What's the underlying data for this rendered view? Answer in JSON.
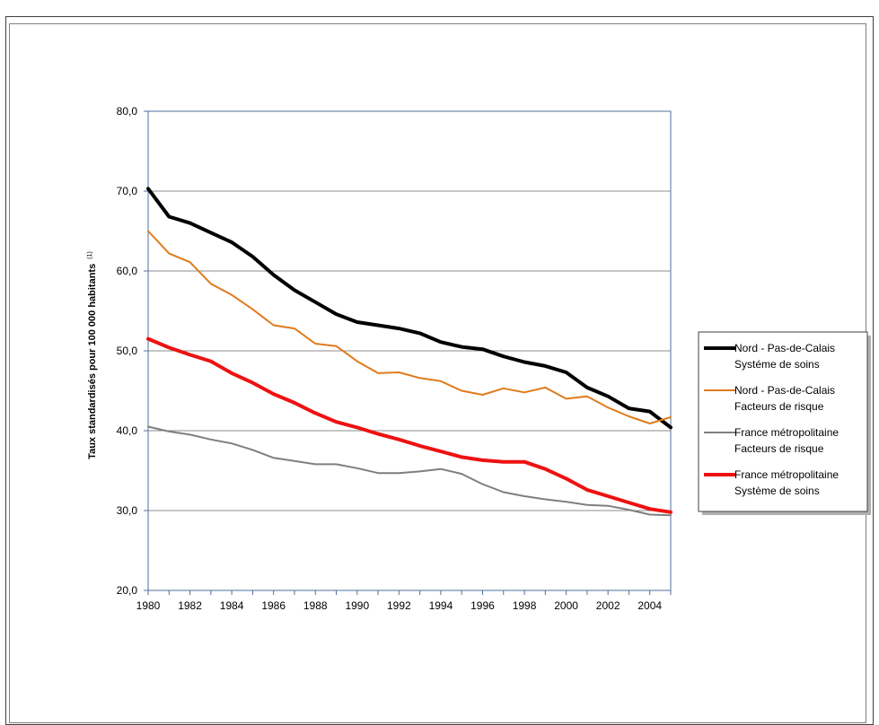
{
  "header": {
    "title": ""
  },
  "chart_data": {
    "type": "line",
    "title": "",
    "xlabel": "",
    "ylabel": "Taux standardisés pour 100 000 habitants",
    "ylabel_sup": "(1)",
    "xlim": [
      1980,
      2005
    ],
    "ylim": [
      20,
      80
    ],
    "yticks": [
      "20,0",
      "30,0",
      "40,0",
      "50,0",
      "60,0",
      "70,0",
      "80,0"
    ],
    "ytick_values": [
      20,
      30,
      40,
      50,
      60,
      70,
      80
    ],
    "xticks": [
      "1980",
      "1982",
      "1984",
      "1986",
      "1988",
      "1990",
      "1992",
      "1994",
      "1996",
      "1998",
      "2000",
      "2002",
      "2004"
    ],
    "xtick_values": [
      1980,
      1982,
      1984,
      1986,
      1988,
      1990,
      1992,
      1994,
      1996,
      1998,
      2000,
      2002,
      2004
    ],
    "grid": true,
    "legend_position": "right",
    "x": [
      1980,
      1981,
      1982,
      1983,
      1984,
      1985,
      1986,
      1987,
      1988,
      1989,
      1990,
      1991,
      1992,
      1993,
      1994,
      1995,
      1996,
      1997,
      1998,
      1999,
      2000,
      2001,
      2002,
      2003,
      2004,
      2005
    ],
    "series": [
      {
        "name_line1": "Nord - Pas-de-Calais",
        "name_line2": "Systéme de soins",
        "color": "#000000",
        "width": 4,
        "values": [
          70.3,
          66.8,
          66.0,
          64.8,
          63.6,
          61.8,
          59.5,
          57.6,
          56.1,
          54.6,
          53.6,
          53.2,
          52.8,
          52.2,
          51.1,
          50.5,
          50.2,
          49.3,
          48.6,
          48.1,
          47.3,
          45.4,
          44.3,
          42.8,
          42.4,
          40.4
        ]
      },
      {
        "name_line1": "Nord - Pas-de-Calais",
        "name_line2": "Facteurs  de risque",
        "color": "#e07b1c",
        "width": 2,
        "values": [
          65.0,
          62.2,
          61.1,
          58.4,
          57.0,
          55.2,
          53.2,
          52.8,
          50.9,
          50.6,
          48.7,
          47.2,
          47.3,
          46.6,
          46.2,
          45.0,
          44.5,
          45.3,
          44.8,
          45.4,
          44.0,
          44.3,
          42.9,
          41.8,
          40.9,
          41.7
        ]
      },
      {
        "name_line1": "France métropolitaine",
        "name_line2": "Facteurs de risque",
        "color": "#7f7f7f",
        "width": 2,
        "values": [
          40.5,
          39.9,
          39.5,
          38.9,
          38.4,
          37.6,
          36.6,
          36.2,
          35.8,
          35.8,
          35.3,
          34.7,
          34.7,
          34.9,
          35.2,
          34.6,
          33.3,
          32.3,
          31.8,
          31.4,
          31.1,
          30.7,
          30.6,
          30.1,
          29.5,
          29.4
        ]
      },
      {
        "name_line1": "France métropolitaine",
        "name_line2": "Système de soins",
        "color": "#ee1111",
        "width": 4,
        "values": [
          51.5,
          50.4,
          49.5,
          48.7,
          47.2,
          46.0,
          44.6,
          43.5,
          42.2,
          41.1,
          40.4,
          39.6,
          38.9,
          38.1,
          37.4,
          36.7,
          36.3,
          36.1,
          36.1,
          35.2,
          34.0,
          32.6,
          31.8,
          31.0,
          30.2,
          29.8
        ]
      }
    ]
  }
}
